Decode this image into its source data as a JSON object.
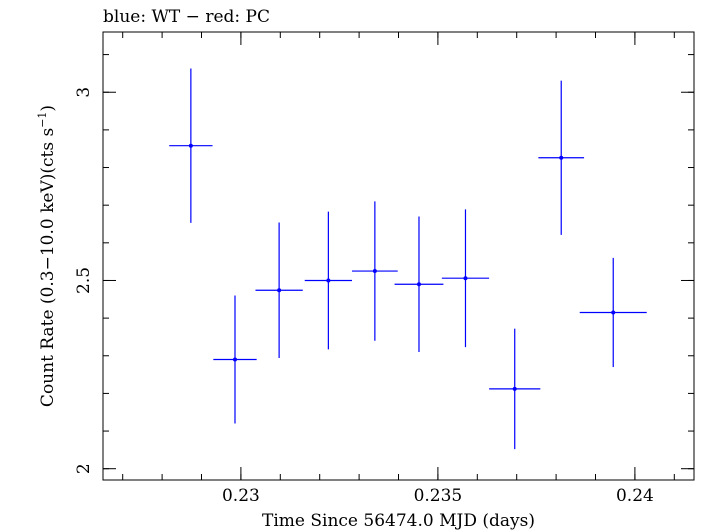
{
  "chart_data": {
    "type": "scatter",
    "title": "blue: WT − red: PC",
    "xlabel": "Time Since 56474.0 MJD (days)",
    "ylabel_parts": {
      "main": "Count Rate (0.3−10.0 keV)(cts s",
      "superscript": "−1",
      "end": ")"
    },
    "xlim": [
      0.2265,
      0.2415
    ],
    "ylim": [
      1.97,
      3.16
    ],
    "xticks": [
      0.23,
      0.235,
      0.24
    ],
    "xtick_labels": [
      "0.23",
      "0.235",
      "0.24"
    ],
    "yticks": [
      2,
      2.5,
      3
    ],
    "ytick_labels": [
      "2",
      "2.5",
      "3"
    ],
    "x_minor_step": 0.001,
    "y_minor_step": 0.1,
    "grid": false,
    "series": [
      {
        "color": "#0000ff",
        "points": [
          {
            "x": 0.22873,
            "xerr": 0.00055,
            "y": 2.858,
            "yerr": 0.205
          },
          {
            "x": 0.22985,
            "xerr": 0.00055,
            "y": 2.29,
            "yerr": 0.17
          },
          {
            "x": 0.23097,
            "xerr": 0.0006,
            "y": 2.474,
            "yerr": 0.18
          },
          {
            "x": 0.23222,
            "xerr": 0.0006,
            "y": 2.5,
            "yerr": 0.183
          },
          {
            "x": 0.2334,
            "xerr": 0.00058,
            "y": 2.525,
            "yerr": 0.185
          },
          {
            "x": 0.23452,
            "xerr": 0.00062,
            "y": 2.49,
            "yerr": 0.18
          },
          {
            "x": 0.2357,
            "xerr": 0.0006,
            "y": 2.506,
            "yerr": 0.183
          },
          {
            "x": 0.23695,
            "xerr": 0.00065,
            "y": 2.212,
            "yerr": 0.16
          },
          {
            "x": 0.23813,
            "xerr": 0.00058,
            "y": 2.826,
            "yerr": 0.205
          },
          {
            "x": 0.23945,
            "xerr": 0.00085,
            "y": 2.415,
            "yerr": 0.145
          }
        ]
      }
    ]
  }
}
